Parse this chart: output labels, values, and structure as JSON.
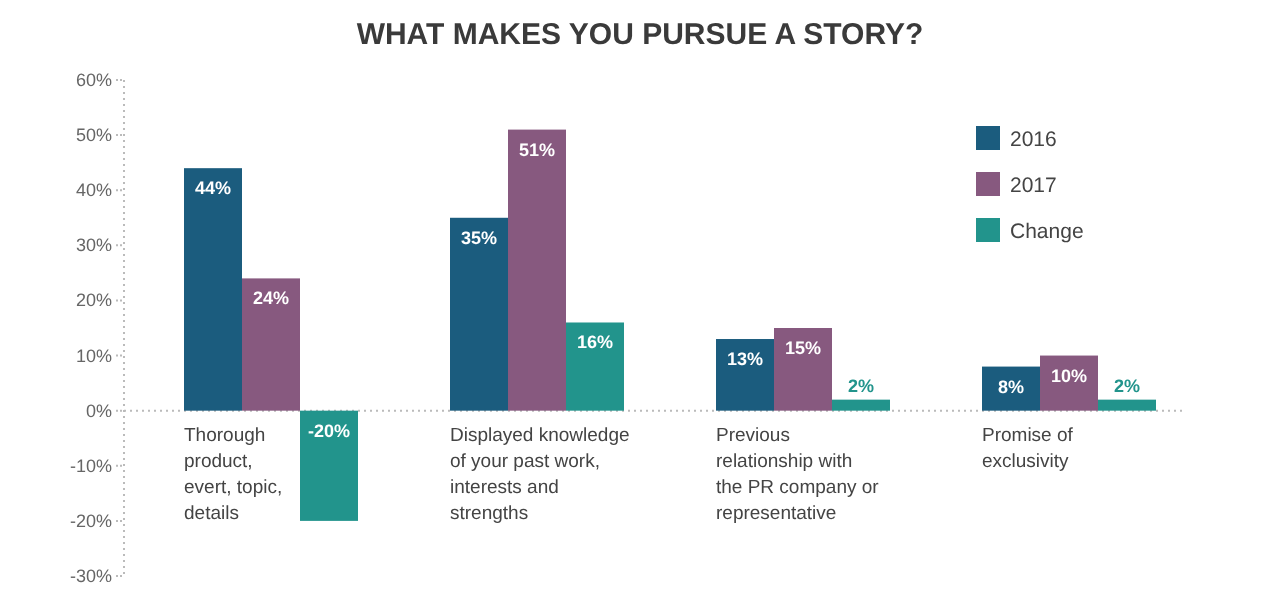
{
  "chart_data": {
    "type": "bar",
    "title": "WHAT MAKES YOU PURSUE A STORY?",
    "categories": [
      "Thorough product, evert, topic, details",
      "Displayed knowledge of your past work, interests and strengths",
      "Previous relationship with the PR company or representative",
      "Promise of exclusivity"
    ],
    "series": [
      {
        "name": "2016",
        "color": "#1b5c7e",
        "values": [
          44,
          35,
          13,
          8
        ],
        "value_labels": [
          "44%",
          "35%",
          "13%",
          "8%"
        ]
      },
      {
        "name": "2017",
        "color": "#87597f",
        "values": [
          24,
          51,
          15,
          10
        ],
        "value_labels": [
          "24%",
          "51%",
          "15%",
          "10%"
        ]
      },
      {
        "name": "Change",
        "color": "#22948c",
        "values": [
          -20,
          16,
          2,
          2
        ],
        "value_labels": [
          "-20%",
          "16%",
          "2%",
          "2%"
        ]
      }
    ],
    "ylim": [
      -30,
      60
    ],
    "yticks": [
      {
        "value": -30,
        "label": "-30%"
      },
      {
        "value": -20,
        "label": "-20%"
      },
      {
        "value": -10,
        "label": "-10%"
      },
      {
        "value": 0,
        "label": "0%"
      },
      {
        "value": 10,
        "label": "10%"
      },
      {
        "value": 20,
        "label": "20%"
      },
      {
        "value": 30,
        "label": "30%"
      },
      {
        "value": 40,
        "label": "40%"
      },
      {
        "value": 50,
        "label": "50%"
      },
      {
        "value": 60,
        "label": "60%"
      }
    ],
    "legend": "top right"
  }
}
